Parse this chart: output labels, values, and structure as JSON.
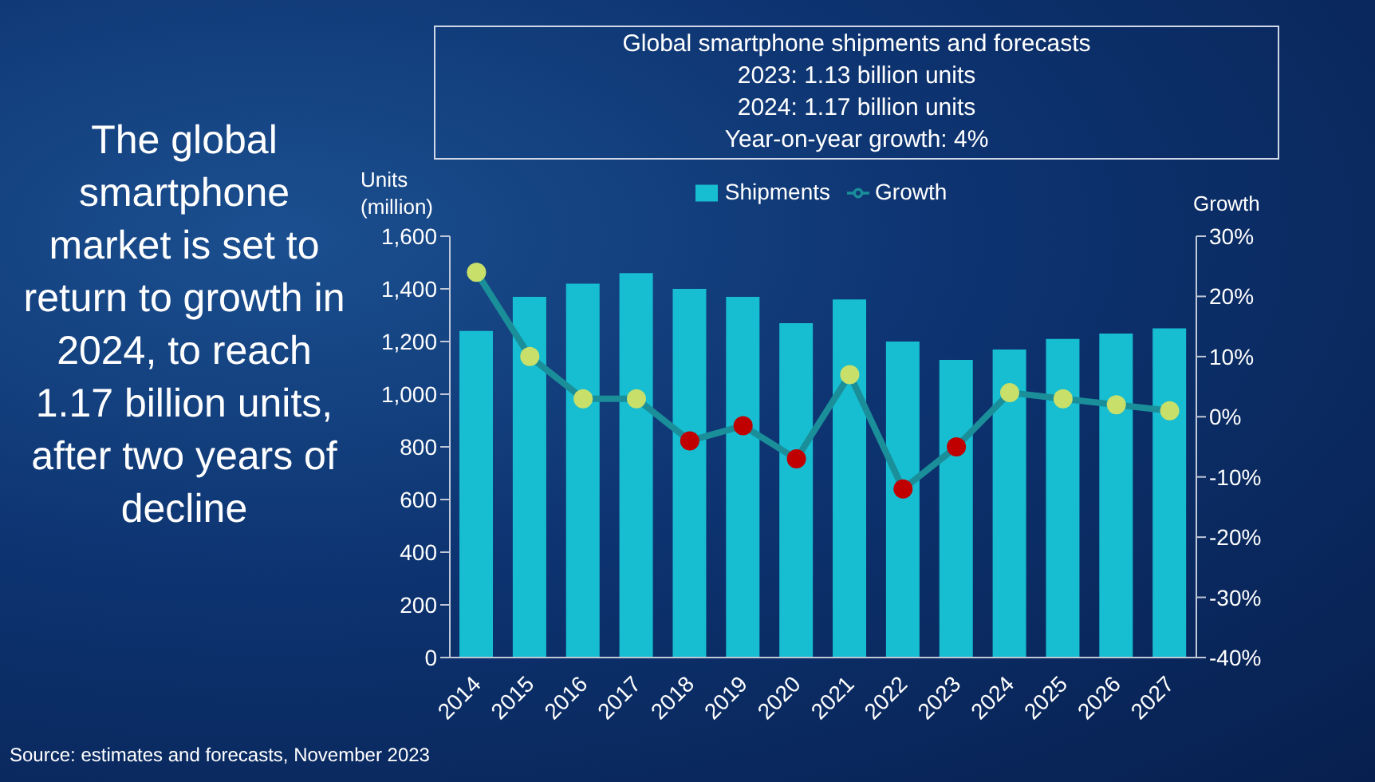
{
  "chart_data": {
    "type": "bar",
    "title": "Global smartphone shipments and forecasts",
    "annotations": [
      "2023: 1.13 billion units",
      "2024: 1.17 billion units",
      "Year-on-year growth: 4%",
      "The global smartphone market is set to return to growth in 2024, to reach 1.17 billion units, after two years of decline",
      "Source: estimates and forecasts, November 2023"
    ],
    "ylabel": "Units (million)",
    "y2label": "Growth",
    "categories": [
      "2014",
      "2015",
      "2016",
      "2017",
      "2018",
      "2019",
      "2020",
      "2021",
      "2022",
      "2023",
      "2024",
      "2025",
      "2026",
      "2027"
    ],
    "series": [
      {
        "name": "Shipments",
        "color": "#17bdd0",
        "values": [
          1240,
          1370,
          1420,
          1460,
          1400,
          1370,
          1270,
          1360,
          1200,
          1130,
          1170,
          1210,
          1230,
          1250
        ]
      },
      {
        "name": "Growth",
        "type": "line",
        "axis": "y2",
        "color": "#1a8f9a",
        "marker": "circle",
        "colors": [
          "#c8e06a",
          "#c8e06a",
          "#c8e06a",
          "#c8e06a",
          "#c00000",
          "#c00000",
          "#c00000",
          "#c8e06a",
          "#c00000",
          "#c00000",
          "#c8e06a",
          "#c8e06a",
          "#c8e06a",
          "#c8e06a"
        ],
        "values": [
          24,
          10,
          3,
          3,
          -4,
          -1.5,
          -7,
          7,
          -12,
          -5,
          4,
          3,
          2,
          1
        ]
      }
    ],
    "ylim": [
      0,
      1600
    ],
    "yticks": [
      0,
      200,
      400,
      600,
      800,
      {
        "value": 1000,
        "label": "1,000"
      },
      {
        "value": 1200,
        "label": "1,200"
      },
      {
        "value": 1400,
        "label": "1,400"
      },
      {
        "value": 1600,
        "label": "1,600"
      }
    ],
    "y2lim": [
      -40,
      30
    ],
    "y2ticks": [
      {
        "value": -40,
        "label": "-40%"
      },
      {
        "value": -30,
        "label": "-30%"
      },
      {
        "value": -20,
        "label": "-20%"
      },
      {
        "value": -10,
        "label": "-10%"
      },
      {
        "value": 0,
        "label": "0%"
      },
      {
        "value": 10,
        "label": "10%"
      },
      {
        "value": 20,
        "label": "20%"
      },
      {
        "value": 30,
        "label": "30%"
      }
    ],
    "grid": false,
    "legend": "top"
  }
}
